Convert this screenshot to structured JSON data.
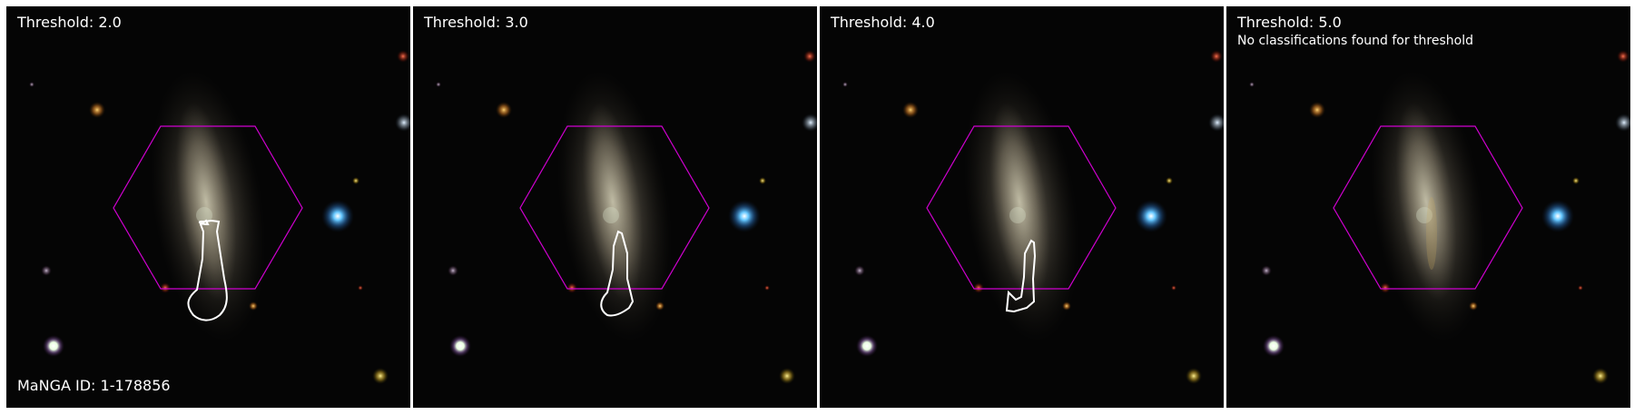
{
  "panels": [
    {
      "threshold_label": "Threshold: 2.0",
      "note": "",
      "has_contour": true
    },
    {
      "threshold_label": "Threshold: 3.0",
      "note": "",
      "has_contour": true
    },
    {
      "threshold_label": "Threshold: 4.0",
      "note": "",
      "has_contour": true
    },
    {
      "threshold_label": "Threshold: 5.0",
      "note": "No classifications found for threshold",
      "has_contour": false
    }
  ],
  "galaxy": {
    "id_label": "MaNGA ID: 1-178856"
  },
  "colors": {
    "background": "#050505",
    "hexagon_outline": "#d000d0",
    "contour": "#ffffff",
    "separator": "#ffffff"
  }
}
